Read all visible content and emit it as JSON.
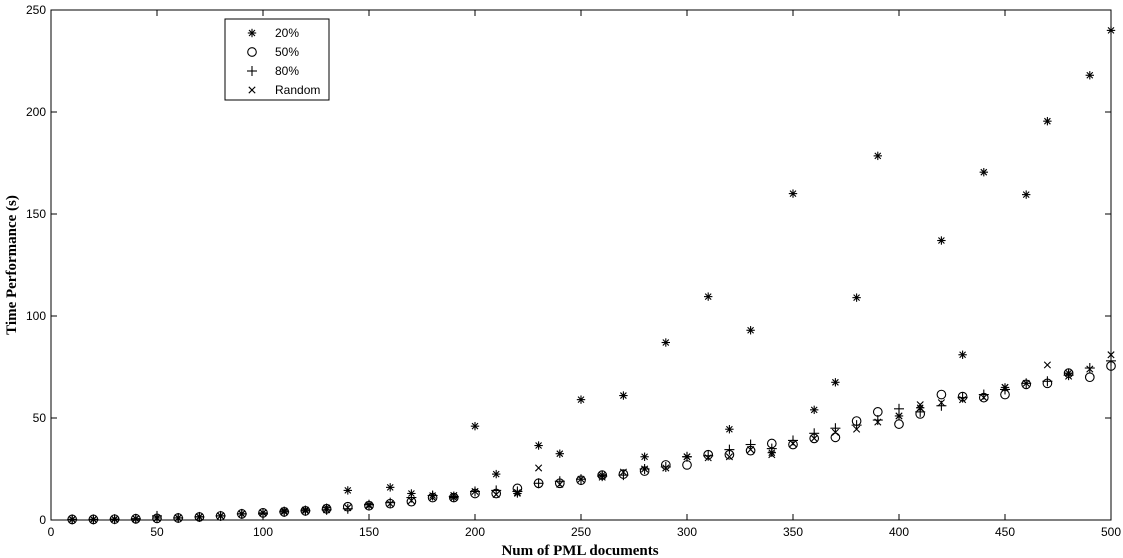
{
  "chart_data": {
    "type": "scatter",
    "title": "",
    "xlabel": "Num of PML documents",
    "ylabel": "Time Performance (s)",
    "xlim": [
      0,
      500
    ],
    "ylim": [
      0,
      250
    ],
    "xticks": [
      0,
      50,
      100,
      150,
      200,
      250,
      300,
      350,
      400,
      450,
      500
    ],
    "yticks": [
      0,
      50,
      100,
      150,
      200,
      250
    ],
    "grid": false,
    "legend_position": "top-left",
    "marker_color": "#000000",
    "series": [
      {
        "name": "20%",
        "marker": "asterisk",
        "x": [
          10,
          20,
          30,
          40,
          50,
          60,
          70,
          80,
          90,
          100,
          110,
          120,
          130,
          140,
          150,
          160,
          170,
          180,
          190,
          200,
          210,
          220,
          230,
          240,
          250,
          260,
          270,
          280,
          290,
          300,
          310,
          320,
          330,
          340,
          350,
          360,
          370,
          380,
          390,
          400,
          410,
          420,
          430,
          440,
          450,
          460,
          470,
          480,
          490,
          500
        ],
        "y": [
          0.3,
          0.3,
          0.4,
          0.6,
          1.0,
          1.0,
          1.6,
          2.0,
          3.0,
          3.5,
          4.5,
          5,
          6,
          14.5,
          7.5,
          16,
          13,
          12,
          11,
          46,
          22.5,
          13,
          36.5,
          32.5,
          59,
          22,
          61,
          31,
          87,
          31,
          109.5,
          44.5,
          93,
          33,
          160,
          54,
          67.5,
          109,
          178.5,
          51,
          55,
          137,
          81,
          170.5,
          65,
          159.5,
          195.5,
          72,
          218,
          240
        ]
      },
      {
        "name": "50%",
        "marker": "circle",
        "x": [
          10,
          20,
          30,
          40,
          50,
          60,
          70,
          80,
          90,
          100,
          110,
          120,
          130,
          140,
          150,
          160,
          170,
          180,
          190,
          200,
          210,
          220,
          230,
          240,
          250,
          260,
          270,
          280,
          290,
          300,
          310,
          320,
          330,
          340,
          350,
          360,
          370,
          380,
          390,
          400,
          410,
          420,
          430,
          440,
          450,
          460,
          470,
          480,
          490,
          500
        ],
        "y": [
          0.3,
          0.3,
          0.4,
          0.6,
          0.8,
          1.0,
          1.5,
          2.0,
          3.0,
          3.5,
          4.0,
          4.5,
          5.5,
          6.5,
          7.0,
          8.0,
          9.0,
          11.0,
          11.0,
          13.0,
          13.0,
          15.5,
          18.0,
          18.0,
          19.5,
          22.0,
          22.5,
          24.0,
          27.0,
          27.0,
          32.0,
          32.0,
          34.0,
          37.5,
          37.0,
          40.0,
          40.5,
          48.5,
          53.0,
          47.0,
          52.0,
          61.5,
          60.5,
          60.0,
          61.5,
          66.5,
          67.0,
          72.0,
          70.0,
          75.5
        ]
      },
      {
        "name": "80%",
        "marker": "plus",
        "x": [
          10,
          20,
          30,
          40,
          50,
          60,
          70,
          80,
          90,
          100,
          110,
          120,
          130,
          140,
          150,
          160,
          170,
          180,
          190,
          200,
          210,
          220,
          230,
          240,
          250,
          260,
          270,
          280,
          290,
          300,
          310,
          320,
          330,
          340,
          350,
          360,
          370,
          380,
          390,
          400,
          410,
          420,
          430,
          440,
          450,
          460,
          470,
          480,
          490,
          500
        ],
        "y": [
          0.3,
          0.3,
          0.4,
          0.6,
          2.0,
          1.0,
          1.5,
          2.0,
          3.0,
          3.0,
          4.0,
          4.5,
          5.0,
          5.5,
          7.5,
          8.5,
          11.0,
          12.0,
          11.5,
          14.0,
          14.5,
          14.0,
          18.0,
          19.0,
          20.0,
          21.5,
          22.0,
          25.0,
          26.0,
          31.0,
          31.5,
          34.5,
          37.0,
          35.0,
          39.0,
          42.5,
          45.0,
          46.5,
          49.0,
          54.5,
          53.0,
          56.0,
          60.0,
          61.5,
          64.0,
          67.0,
          68.0,
          71.0,
          74.5,
          78.0
        ]
      },
      {
        "name": "Random",
        "marker": "x",
        "x": [
          10,
          20,
          30,
          40,
          50,
          60,
          70,
          80,
          90,
          100,
          110,
          120,
          130,
          140,
          150,
          160,
          170,
          180,
          190,
          200,
          210,
          220,
          230,
          240,
          250,
          260,
          270,
          280,
          290,
          300,
          310,
          320,
          330,
          340,
          350,
          360,
          370,
          380,
          390,
          400,
          410,
          420,
          430,
          440,
          450,
          460,
          470,
          480,
          490,
          500
        ],
        "y": [
          0.3,
          0.3,
          0.4,
          0.6,
          0.8,
          1.0,
          1.5,
          2.0,
          3.0,
          3.5,
          4.0,
          4.5,
          5.0,
          6.0,
          7.0,
          8.0,
          9.5,
          11.0,
          12.0,
          14.0,
          12.5,
          13.5,
          25.5,
          17.5,
          20.0,
          21.0,
          23.5,
          25.0,
          25.5,
          31.0,
          30.5,
          31.0,
          34.5,
          32.0,
          37.5,
          40.0,
          43.0,
          44.5,
          48.0,
          51.0,
          56.5,
          57.5,
          59.0,
          60.0,
          65.0,
          67.0,
          76.0,
          70.5,
          74.0,
          81.0
        ]
      }
    ]
  }
}
